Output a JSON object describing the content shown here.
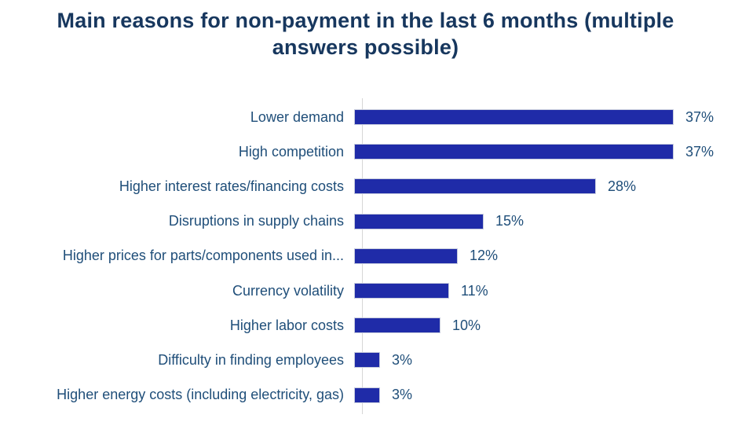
{
  "chart_data": {
    "type": "bar",
    "orientation": "horizontal",
    "title": "Main reasons for non-payment in the last 6 months (multiple answers possible)",
    "categories": [
      "Lower demand",
      "High competition",
      "Higher interest rates/financing costs",
      "Disruptions in supply chains",
      "Higher prices for parts/components used in...",
      "Currency volatility",
      "Higher labor costs",
      "Difficulty in finding employees",
      "Higher energy costs (including electricity, gas)"
    ],
    "values": [
      37,
      37,
      28,
      15,
      12,
      11,
      10,
      3,
      3
    ],
    "value_labels": [
      "37%",
      "37%",
      "28%",
      "15%",
      "12%",
      "11%",
      "10%",
      "3%",
      "3%"
    ],
    "xlabel": "",
    "ylabel": "",
    "xlim": [
      0,
      40
    ],
    "grid": false,
    "legend": false,
    "data_labels_position": "outside-end",
    "colors": {
      "bar": "#1F2BA8",
      "bar_border": "#C6CBDD",
      "title_text": "#17375E",
      "label_text": "#1F4E79",
      "axis_line": "#D6D6D6",
      "background": "#FFFFFF"
    },
    "pixels_per_percent": 11
  }
}
